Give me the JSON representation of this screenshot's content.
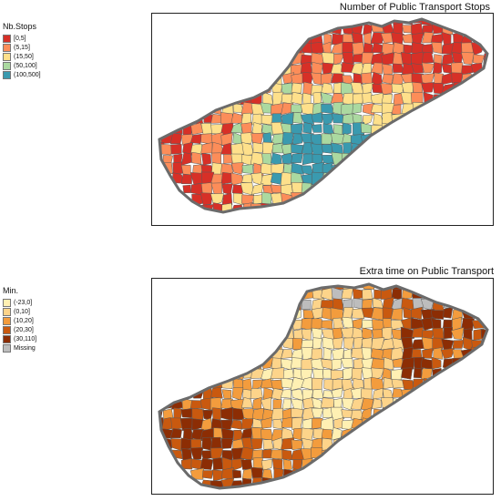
{
  "maps": [
    {
      "title": "Number of Public Transport Stops",
      "legend": {
        "title": "Nb.Stops",
        "items": [
          {
            "label": "[0,5]",
            "color": "#d73027"
          },
          {
            "label": "(5,15]",
            "color": "#fc8d59"
          },
          {
            "label": "(15,50]",
            "color": "#fee08b"
          },
          {
            "label": "(50,100]",
            "color": "#abd9a0"
          },
          {
            "label": "(100,500]",
            "color": "#3a9aaf"
          }
        ]
      }
    },
    {
      "title": "Extra time on Public Transport",
      "legend": {
        "title": "Min.",
        "items": [
          {
            "label": "(-23,0]",
            "color": "#fff0b3"
          },
          {
            "label": "(0,10]",
            "color": "#fdd48a"
          },
          {
            "label": "(10,20]",
            "color": "#f39c3d"
          },
          {
            "label": "(20,30]",
            "color": "#c9590f"
          },
          {
            "label": "(30,110]",
            "color": "#8c2d04"
          },
          {
            "label": "Missing",
            "color": "#bdbdbd"
          }
        ]
      }
    }
  ]
}
